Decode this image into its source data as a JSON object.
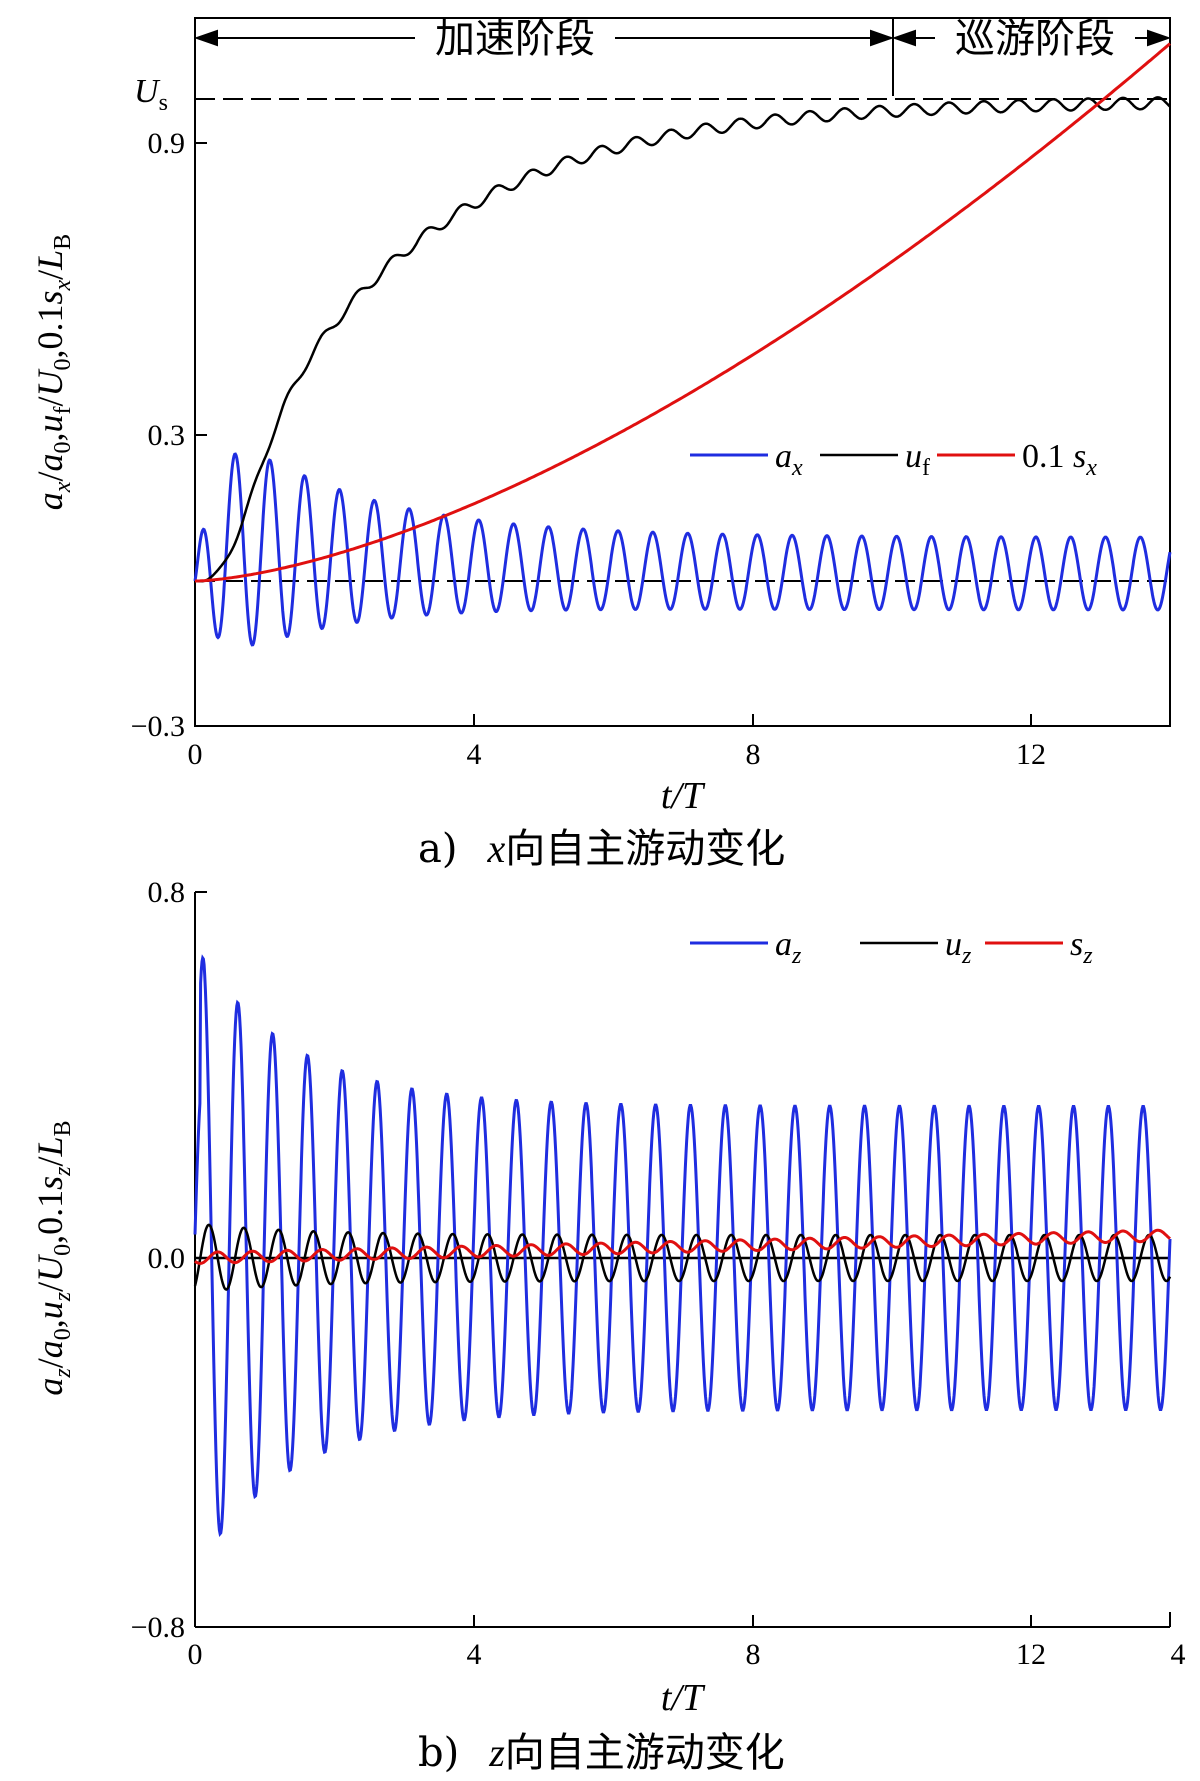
{
  "chart_data": [
    {
      "type": "line",
      "panel_id": "a)",
      "caption_var": "x",
      "caption_text": "向自主游动变化",
      "xlabel": "t/T",
      "ylabel": "a_x/a_0,u_f/U_0,0.1s_x/L_B",
      "xlim": [
        0,
        14
      ],
      "ylim": [
        -0.3,
        1.0
      ],
      "x_ticks": [
        "0",
        "4",
        "8",
        "12"
      ],
      "y_ticks": [
        "−0.3",
        "0.3",
        "0.9"
      ],
      "phases": [
        {
          "label": "加速阶段",
          "x_range": [
            0,
            10
          ]
        },
        {
          "label": "巡游阶段",
          "x_range": [
            10,
            14
          ]
        }
      ],
      "reference_lines": [
        {
          "label": "U_s",
          "y": 0.99
        },
        {
          "label": "",
          "y": 0.0
        }
      ],
      "legend_position": "right-middle",
      "series": [
        {
          "name": "a_x",
          "color": "#1f2de0",
          "description": "oscillating acceleration, peak 0.31 near t/T=1.1, settling to oscillation between -0.06 and 0.09"
        },
        {
          "name": "u_f",
          "color": "#000000",
          "description": "velocity rising from 0 to approximately 0.99 with small ripples"
        },
        {
          "name": "0.1 s_x",
          "color": "#e01010",
          "description": "displacement increasing from 0 to approximately 1.1 at t/T=14"
        }
      ]
    },
    {
      "type": "line",
      "panel_id": "b)",
      "caption_var": "z",
      "caption_text": "向自主游动变化",
      "xlabel": "t/T",
      "ylabel": "a_z/a_0,u_z/U_0,0.1s_z/L_B",
      "xlim": [
        0,
        14
      ],
      "ylim": [
        -0.8,
        0.8
      ],
      "x_ticks": [
        "0",
        "4",
        "8",
        "12"
      ],
      "x_extra_label": "4",
      "y_ticks": [
        "−0.8",
        "0.0",
        "0.8"
      ],
      "reference_lines": [
        {
          "label": "",
          "y": 0.0
        }
      ],
      "legend_position": "top-right",
      "series": [
        {
          "name": "a_z",
          "color": "#1f2de0",
          "description": "large oscillation, min -0.58 near t/T=1.0, settling to amplitude about 0.34"
        },
        {
          "name": "u_z",
          "color": "#000000",
          "description": "small oscillation with amplitude about 0.05"
        },
        {
          "name": "s_z",
          "color": "#e01010",
          "description": "small drift rising to about 0.05 at t/T=14"
        }
      ]
    }
  ]
}
